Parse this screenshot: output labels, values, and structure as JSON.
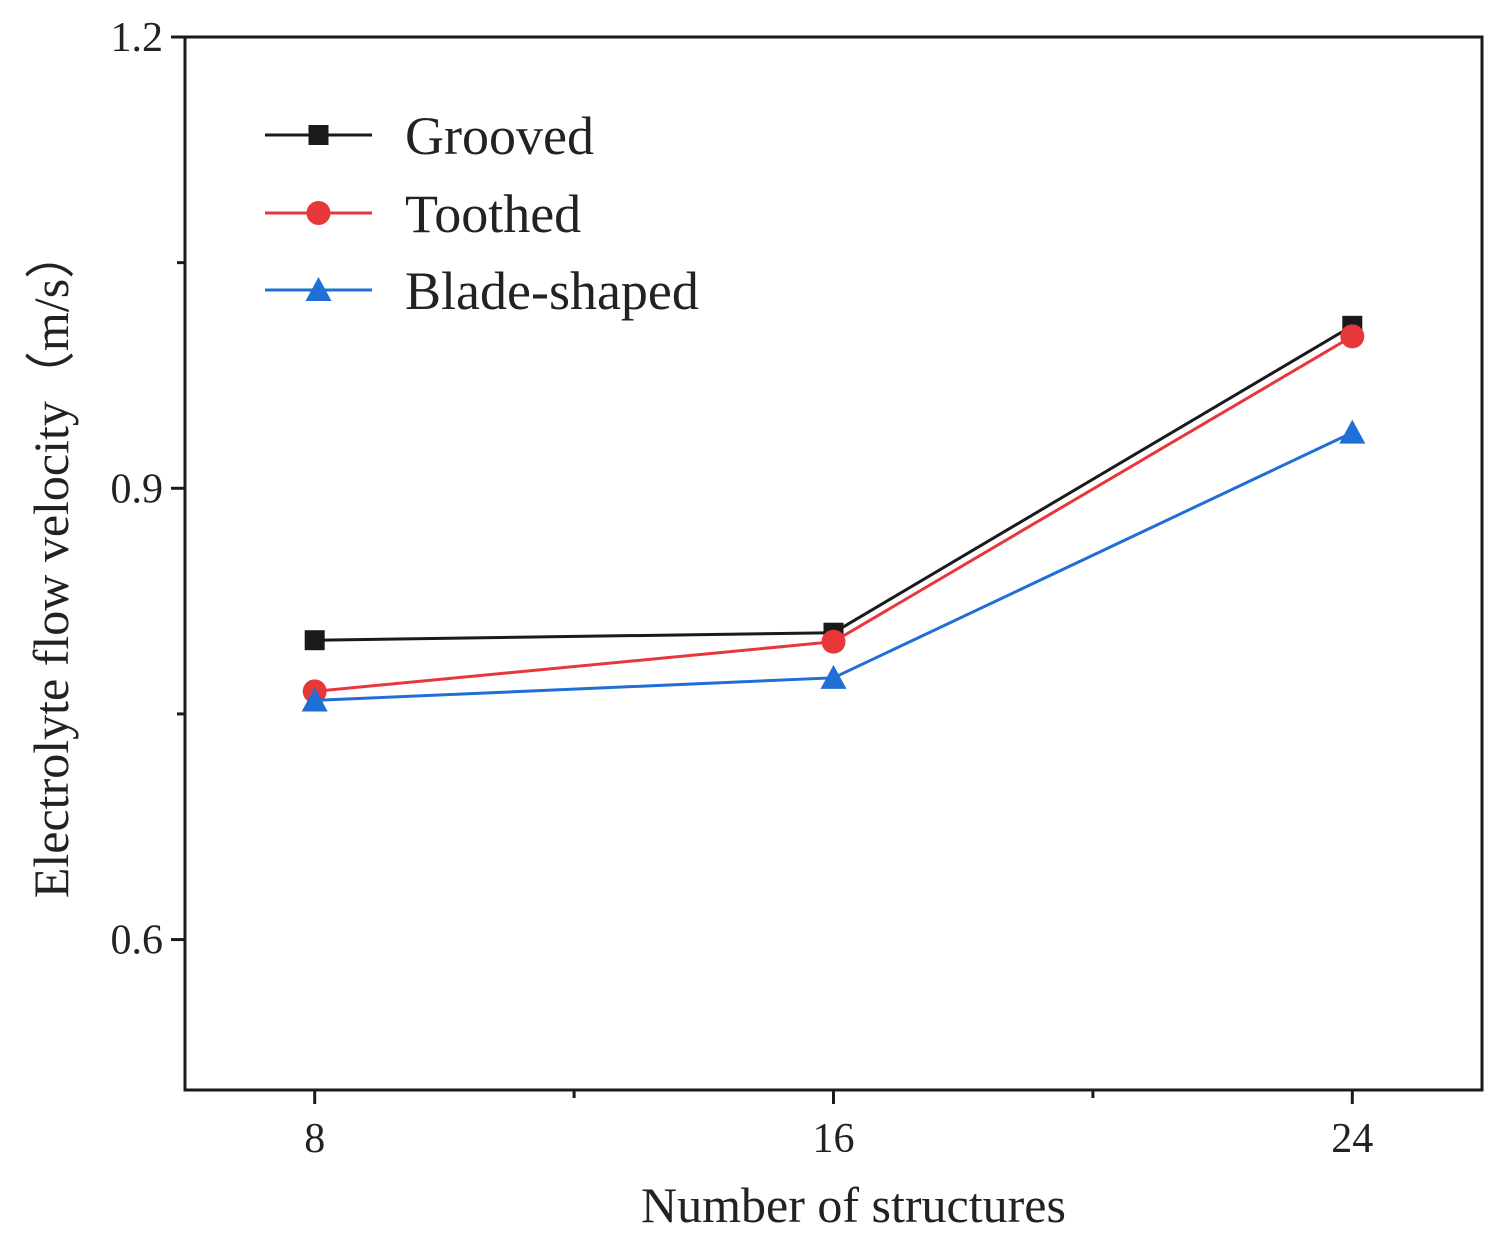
{
  "chart_data": {
    "type": "line",
    "title": "",
    "xlabel": "Number of structures",
    "ylabel": "Electrolyte flow velocity（m/s）",
    "x": [
      8,
      16,
      24
    ],
    "x_tick_labels": [
      "8",
      "16",
      "24"
    ],
    "xlim": [
      6,
      26
    ],
    "ylim": [
      0.5,
      1.2
    ],
    "y_ticks": [
      0.6,
      0.9,
      1.2
    ],
    "y_tick_labels": [
      "0.6",
      "0.9",
      "1.2"
    ],
    "grid": false,
    "legend_position": "top-left",
    "series": [
      {
        "name": "Grooved",
        "values": [
          0.799,
          0.804,
          1.008
        ],
        "color": "#1a1a1a",
        "marker": "square"
      },
      {
        "name": "Toothed",
        "values": [
          0.765,
          0.798,
          1.001
        ],
        "color": "#e8373a",
        "marker": "circle"
      },
      {
        "name": "Blade-shaped",
        "values": [
          0.759,
          0.774,
          0.937
        ],
        "color": "#1f6fd6",
        "marker": "triangle"
      }
    ]
  }
}
